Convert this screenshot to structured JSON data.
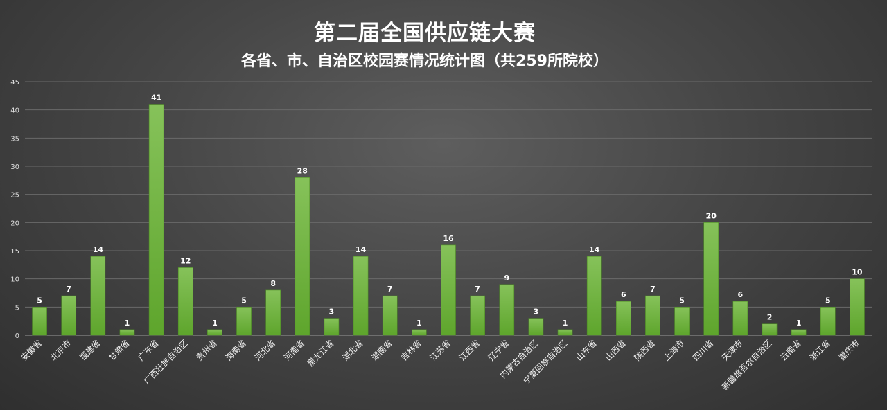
{
  "chart_data": {
    "type": "bar",
    "title": "第二届全国供应链大赛",
    "subtitle": "各省、市、自治区校园赛情况统计图（共259所院校）",
    "categories": [
      "安徽省",
      "北京市",
      "福建省",
      "甘肃省",
      "广东省",
      "广西壮族自治区",
      "贵州省",
      "海南省",
      "河北省",
      "河南省",
      "黑龙江省",
      "湖北省",
      "湖南省",
      "吉林省",
      "江苏省",
      "江西省",
      "辽宁省",
      "内蒙古自治区",
      "宁夏回族自治区",
      "山东省",
      "山西省",
      "陕西省",
      "上海市",
      "四川省",
      "天津市",
      "新疆维吾尔自治区",
      "云南省",
      "浙江省",
      "重庆市"
    ],
    "values": [
      5,
      7,
      14,
      1,
      41,
      12,
      1,
      5,
      8,
      28,
      3,
      14,
      7,
      1,
      16,
      7,
      9,
      3,
      1,
      14,
      6,
      7,
      5,
      20,
      6,
      2,
      1,
      5,
      10
    ],
    "ylim": [
      0,
      45
    ],
    "yticks": [
      0,
      5,
      10,
      15,
      20,
      25,
      30,
      35,
      40,
      45
    ],
    "grid": true,
    "data_labels": true,
    "bar_color": "#6fb23c"
  }
}
